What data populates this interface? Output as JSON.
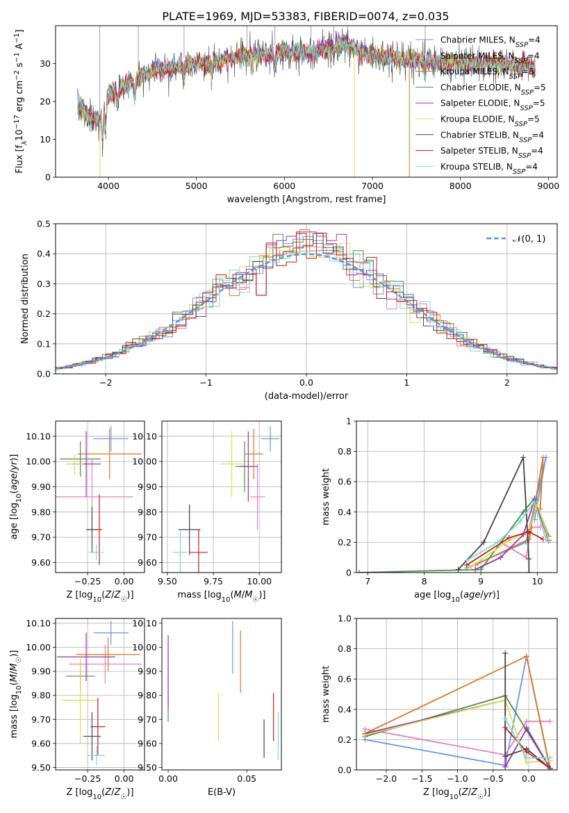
{
  "figure": {
    "title": "PLATE=1969, MJD=53383, FIBERID=0074, z=0.035"
  },
  "colors": [
    "#6495ED",
    "#E87DBE",
    "#D9761F",
    "#4B8A4B",
    "#9932B0",
    "#D8E04A",
    "#444444",
    "#C11B17",
    "#7ED4DA"
  ],
  "legend_spectrum": [
    "Chabrier MILES, N_SSP=4",
    "Salpeter MILES, N_SSP=4",
    "Kroupa MILES, N_SSP=3",
    "Chabrier ELODIE, N_SSP=5",
    "Salpeter ELODIE, N_SSP=5",
    "Kroupa ELODIE, N_SSP=5",
    "Chabrier STELIB, N_SSP=4",
    "Salpeter STELIB, N_SSP=4",
    "Kroupa STELIB, N_SSP=4"
  ],
  "legend_hist": "𝒩(0, 1)",
  "chart_data": [
    {
      "id": "spectrum",
      "type": "line",
      "xlabel": "wavelength [Angstrom, rest frame]",
      "ylabel": "Flux [f_λ 10^-17 erg cm^-2 s^-1 A^-1]",
      "xlim": [
        3400,
        9100
      ],
      "ylim": [
        0,
        40
      ],
      "xticks": [
        4000,
        5000,
        6000,
        7000,
        8000,
        9000
      ],
      "yticks": [
        0,
        10,
        20,
        30
      ],
      "grid": false,
      "legend": "top-right",
      "continuum_x": [
        3650,
        3700,
        3800,
        3900,
        4000,
        4100,
        4300,
        4500,
        5000,
        5300,
        5600,
        6000,
        6300,
        6500,
        6700,
        7000,
        7500,
        8000,
        8500,
        8850
      ],
      "continuum_y": [
        20,
        18,
        16,
        15,
        22,
        23,
        26,
        28,
        30,
        31,
        32,
        33,
        33,
        34,
        35,
        32,
        31,
        30,
        30,
        29
      ],
      "sky_lines_x": [
        3900,
        4340,
        4860,
        5577,
        5893,
        6300,
        6563,
        6716,
        7600
      ]
    },
    {
      "id": "residuals",
      "type": "bar",
      "xlabel": "(data-model)/error",
      "ylabel": "Normed distribution",
      "xlim": [
        -2.5,
        2.5
      ],
      "ylim": [
        0,
        0.5
      ],
      "xticks": [
        -2,
        -1,
        0,
        1,
        2
      ],
      "yticks": [
        0.0,
        0.1,
        0.2,
        0.3,
        0.4,
        0.5
      ],
      "grid": true,
      "legend": "top-right",
      "bin_width": 0.1,
      "peak_values": [
        0.46,
        0.43,
        0.42,
        0.45,
        0.48,
        0.4,
        0.43,
        0.39,
        0.41
      ]
    },
    {
      "id": "age-vs-Z",
      "type": "scatter",
      "xlabel": "Z [log10(Z/Z☉)]",
      "ylabel": "age [log10(age/yr)]",
      "xlim": [
        -0.47,
        0.14
      ],
      "ylim": [
        9.56,
        10.16
      ],
      "xticks": [
        -0.25,
        0.0
      ],
      "yticks": [
        9.6,
        9.7,
        9.8,
        9.9,
        10.0,
        10.1
      ],
      "grid": true,
      "points": [
        {
          "x": -0.09,
          "y": 10.09,
          "xerr": 0.12,
          "yerr": 0.05
        },
        {
          "x": -0.22,
          "y": 9.86,
          "xerr": 0.28,
          "yerr": 0.15
        },
        {
          "x": -0.1,
          "y": 10.03,
          "xerr": 0.22,
          "yerr": 0.1
        },
        {
          "x": -0.3,
          "y": 10.01,
          "xerr": 0.14,
          "yerr": 0.07
        },
        {
          "x": -0.26,
          "y": 9.99,
          "xerr": 0.1,
          "yerr": 0.13
        },
        {
          "x": -0.34,
          "y": 9.99,
          "xerr": 0.06,
          "yerr": 0.04
        },
        {
          "x": -0.22,
          "y": 9.73,
          "xerr": 0.04,
          "yerr": 0.09
        },
        {
          "x": -0.17,
          "y": 9.73,
          "xerr": 0.02,
          "yerr": 0.14
        },
        {
          "x": -0.19,
          "y": 9.64,
          "xerr": 0.05,
          "yerr": 0.03
        }
      ]
    },
    {
      "id": "age-vs-mass",
      "type": "scatter",
      "xlabel": "mass [log10(M/M☉)]",
      "ylabel": "",
      "xlim": [
        9.47,
        10.12
      ],
      "ylim": [
        9.56,
        10.16
      ],
      "xticks": [
        9.5,
        9.75,
        10.0
      ],
      "yticks": [
        9.6,
        9.7,
        9.8,
        9.9,
        10.0,
        10.1
      ],
      "grid": true,
      "points": [
        {
          "x": 10.06,
          "y": 10.09,
          "xerr": 0.05,
          "yerr": 0.05
        },
        {
          "x": 9.99,
          "y": 9.86,
          "xerr": 0.04,
          "yerr": 0.13
        },
        {
          "x": 9.97,
          "y": 10.03,
          "xerr": 0.05,
          "yerr": 0.1
        },
        {
          "x": 9.92,
          "y": 9.98,
          "xerr": 0.05,
          "yerr": 0.1
        },
        {
          "x": 9.94,
          "y": 9.98,
          "xerr": 0.05,
          "yerr": 0.14
        },
        {
          "x": 9.85,
          "y": 9.99,
          "xerr": 0.06,
          "yerr": 0.13
        },
        {
          "x": 9.62,
          "y": 9.73,
          "xerr": 0.06,
          "yerr": 0.1
        },
        {
          "x": 9.67,
          "y": 9.64,
          "xerr": 0.05,
          "yerr": 0.09
        },
        {
          "x": 9.57,
          "y": 9.64,
          "xerr": 0.04,
          "yerr": 0.09
        }
      ]
    },
    {
      "id": "massweight-vs-age",
      "type": "line",
      "xlabel": "age [log10(age/yr)]",
      "ylabel": "mass weight",
      "xlim": [
        6.8,
        10.35
      ],
      "ylim": [
        0,
        1
      ],
      "xticks": [
        7,
        8,
        9,
        10
      ],
      "yticks": [
        0.0,
        0.2,
        0.4,
        0.6,
        0.8,
        1.0
      ],
      "grid": true,
      "series": [
        {
          "x": [
            8.75,
            9.8,
            10.15,
            9.95
          ],
          "y": [
            0.03,
            0.2,
            0.76,
            0.35
          ]
        },
        {
          "x": [
            9.35,
            9.8,
            9.9,
            10.05
          ],
          "y": [
            0.2,
            0.1,
            0.3,
            0.3
          ]
        },
        {
          "x": [
            8.9,
            9.85,
            10.1,
            10.05
          ],
          "y": [
            0.05,
            0.22,
            0.76,
            0.42
          ]
        },
        {
          "x": [
            6.85,
            9.0,
            9.75,
            9.95,
            10.2
          ],
          "y": [
            0.0,
            0.02,
            0.4,
            0.49,
            0.24
          ]
        },
        {
          "x": [
            8.9,
            9.35,
            9.75,
            9.95,
            10.2
          ],
          "y": [
            0.02,
            0.1,
            0.25,
            0.48,
            0.21
          ]
        },
        {
          "x": [
            8.8,
            9.45,
            9.85,
            10.0,
            10.2
          ],
          "y": [
            0.03,
            0.2,
            0.28,
            0.45,
            0.22
          ]
        },
        {
          "x": [
            8.6,
            9.05,
            9.75,
            9.85,
            9.85
          ],
          "y": [
            0.02,
            0.2,
            0.76,
            0.09,
            0.0
          ]
        },
        {
          "x": [
            8.75,
            9.5,
            9.85,
            10.1
          ],
          "y": [
            0.05,
            0.23,
            0.27,
            0.22
          ]
        },
        {
          "x": [
            8.75,
            9.3,
            9.7,
            9.95,
            10.15
          ],
          "y": [
            0.08,
            0.2,
            0.34,
            0.47,
            0.22
          ]
        }
      ]
    },
    {
      "id": "mass-vs-Z",
      "type": "scatter",
      "xlabel": "Z [log10(Z/Z☉)]",
      "ylabel": "mass [log10(M/M☉)]",
      "xlim": [
        -0.47,
        0.14
      ],
      "ylim": [
        9.49,
        10.12
      ],
      "xticks": [
        -0.25,
        0.0
      ],
      "yticks": [
        9.5,
        9.6,
        9.7,
        9.8,
        9.9,
        10.0,
        10.1
      ],
      "grid": true,
      "points": [
        {
          "x": -0.09,
          "y": 10.06,
          "xerr": 0.12,
          "yerr": 0.05
        },
        {
          "x": -0.13,
          "y": 9.93,
          "xerr": 0.25,
          "yerr": 0.08
        },
        {
          "x": -0.11,
          "y": 9.97,
          "xerr": 0.22,
          "yerr": 0.07
        },
        {
          "x": -0.3,
          "y": 9.88,
          "xerr": 0.1,
          "yerr": 0.06
        },
        {
          "x": -0.26,
          "y": 9.96,
          "xerr": 0.2,
          "yerr": 0.1
        },
        {
          "x": -0.3,
          "y": 9.78,
          "xerr": 0.13,
          "yerr": 0.18
        },
        {
          "x": -0.22,
          "y": 9.63,
          "xerr": 0.06,
          "yerr": 0.1
        },
        {
          "x": -0.18,
          "y": 9.67,
          "xerr": 0.05,
          "yerr": 0.12
        },
        {
          "x": -0.19,
          "y": 9.55,
          "xerr": 0.06,
          "yerr": 0.04
        }
      ]
    },
    {
      "id": "mass-vs-ebv",
      "type": "scatter",
      "xlabel": "E(B-V)",
      "ylabel": "",
      "xlim": [
        -0.004,
        0.072
      ],
      "ylim": [
        9.49,
        10.12
      ],
      "xticks": [
        0.0,
        0.05
      ],
      "yticks": [
        9.5,
        9.6,
        9.7,
        9.8,
        9.9,
        10.0,
        10.1
      ],
      "grid": false,
      "points": [
        {
          "x": 0.041,
          "y": 10.0,
          "xerr": 0,
          "yerr": 0.11
        },
        {
          "x": 0.0,
          "y": 9.9,
          "xerr": 0,
          "yerr": 0.08
        },
        {
          "x": 0.046,
          "y": 9.94,
          "xerr": 0,
          "yerr": 0.13
        },
        {
          "x": 0.0,
          "y": 9.75,
          "xerr": 0,
          "yerr": 0.06
        },
        {
          "x": 0.0,
          "y": 9.9,
          "xerr": 0,
          "yerr": 0.15
        },
        {
          "x": 0.032,
          "y": 9.71,
          "xerr": 0,
          "yerr": 0.1
        },
        {
          "x": 0.061,
          "y": 9.62,
          "xerr": 0,
          "yerr": 0.08
        },
        {
          "x": 0.067,
          "y": 9.71,
          "xerr": 0,
          "yerr": 0.1
        },
        {
          "x": 0.07,
          "y": 9.63,
          "xerr": 0,
          "yerr": 0.1
        }
      ]
    },
    {
      "id": "massweight-vs-Z",
      "type": "line",
      "xlabel": "Z [log10(Z/Z☉)]",
      "ylabel": "mass weight",
      "xlim": [
        -2.42,
        0.4
      ],
      "ylim": [
        0,
        1
      ],
      "xticks": [
        -2.0,
        -1.5,
        -1.0,
        -0.5,
        0.0
      ],
      "yticks": [
        0.0,
        0.2,
        0.4,
        0.6,
        0.8,
        1.0
      ],
      "grid": true,
      "series": [
        {
          "x": [
            -2.3,
            -0.33,
            -0.03,
            0.3
          ],
          "y": [
            0.2,
            0.03,
            0.75,
            0.0
          ]
        },
        {
          "x": [
            -2.3,
            -0.33,
            -0.03,
            0.3
          ],
          "y": [
            0.27,
            0.1,
            0.32,
            0.32
          ]
        },
        {
          "x": [
            -2.3,
            -0.03,
            0.3
          ],
          "y": [
            0.24,
            0.75,
            0.01
          ]
        },
        {
          "x": [
            -2.3,
            -0.33,
            0.3,
            -0.03
          ],
          "y": [
            0.22,
            0.49,
            0.01,
            0.28
          ]
        },
        {
          "x": [
            -2.3,
            -0.33,
            -0.33,
            -0.03,
            0.3
          ],
          "y": [
            0.24,
            0.46,
            0.02,
            0.27,
            0.01
          ]
        },
        {
          "x": [
            -2.3,
            -0.33,
            -0.03,
            0.3
          ],
          "y": [
            0.23,
            0.46,
            0.05,
            0.06
          ]
        },
        {
          "x": [
            -0.33,
            -0.33,
            -0.03,
            0.3
          ],
          "y": [
            0.77,
            0.09,
            0.14,
            0.01
          ]
        },
        {
          "x": [
            -0.33,
            -0.03,
            0.3
          ],
          "y": [
            0.28,
            0.12,
            0.01
          ]
        },
        {
          "x": [
            -0.33,
            -0.03,
            0.3
          ],
          "y": [
            0.34,
            0.08,
            0.08
          ]
        }
      ]
    }
  ]
}
